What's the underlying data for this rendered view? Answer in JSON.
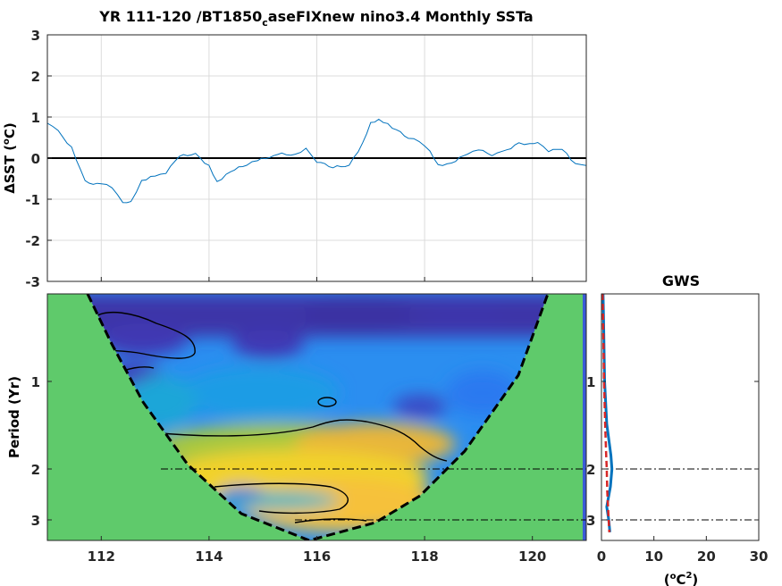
{
  "chart_data": [
    {
      "type": "line",
      "title_main": "YR 111-120 /BT1850",
      "title_sub": "c",
      "title_rest": "aseFIXnew nino3.4 Monthly SSTa",
      "ylabel_delta": "Δ",
      "ylabel_rest": "SST (",
      "ylabel_deg": "o",
      "ylabel_unit": "C)",
      "xlim": [
        111,
        121
      ],
      "ylim": [
        -3,
        3
      ],
      "xticks": [
        112,
        114,
        116,
        118,
        120
      ],
      "yticks": [
        3,
        2,
        1,
        0,
        -1,
        -2,
        -3
      ],
      "grid": true,
      "zero_line": true,
      "series_color": "#0072bd",
      "knots": [
        [
          111.0,
          0.85
        ],
        [
          111.2,
          0.65
        ],
        [
          111.45,
          0.25
        ],
        [
          111.7,
          -0.55
        ],
        [
          111.85,
          -0.62
        ],
        [
          112.0,
          -0.6
        ],
        [
          112.2,
          -0.72
        ],
        [
          112.4,
          -1.1
        ],
        [
          112.55,
          -1.08
        ],
        [
          112.75,
          -0.55
        ],
        [
          113.0,
          -0.42
        ],
        [
          113.2,
          -0.35
        ],
        [
          113.45,
          0.05
        ],
        [
          113.75,
          0.1
        ],
        [
          114.0,
          -0.2
        ],
        [
          114.15,
          -0.58
        ],
        [
          114.4,
          -0.32
        ],
        [
          114.7,
          -0.15
        ],
        [
          114.9,
          -0.05
        ],
        [
          115.2,
          0.05
        ],
        [
          115.35,
          0.1
        ],
        [
          115.6,
          0.08
        ],
        [
          115.8,
          0.25
        ],
        [
          116.0,
          -0.08
        ],
        [
          116.3,
          -0.22
        ],
        [
          116.6,
          -0.18
        ],
        [
          116.85,
          0.35
        ],
        [
          117.0,
          0.85
        ],
        [
          117.15,
          0.95
        ],
        [
          117.4,
          0.75
        ],
        [
          117.7,
          0.5
        ],
        [
          117.9,
          0.4
        ],
        [
          118.1,
          0.15
        ],
        [
          118.25,
          -0.18
        ],
        [
          118.5,
          -0.12
        ],
        [
          118.8,
          0.12
        ],
        [
          119.0,
          0.22
        ],
        [
          119.25,
          0.06
        ],
        [
          119.45,
          0.15
        ],
        [
          119.75,
          0.35
        ],
        [
          119.95,
          0.35
        ],
        [
          120.1,
          0.4
        ],
        [
          120.3,
          0.18
        ],
        [
          120.55,
          0.22
        ],
        [
          120.8,
          -0.15
        ],
        [
          121.0,
          -0.18
        ]
      ]
    },
    {
      "type": "heatmap",
      "xlim": [
        111,
        121
      ],
      "ylabel": "Period (Yr)",
      "xticks": [
        112,
        114,
        116,
        118,
        120
      ],
      "yticks": [
        1,
        2,
        3
      ],
      "y_scale": "log",
      "reference_periods": [
        2,
        3
      ],
      "cone_of_influence": true,
      "colormap": "parula"
    },
    {
      "type": "line",
      "title": "GWS",
      "xlabel_main": "(",
      "xlabel_deg": "o",
      "xlabel_mid": "C",
      "xlabel_sup": "2",
      "xlabel_end": ")",
      "xlim": [
        0,
        30
      ],
      "xticks": [
        0,
        10,
        20,
        30
      ],
      "yticks": [
        1,
        2,
        3
      ],
      "reference_periods": [
        2,
        3
      ],
      "series": [
        {
          "style": "solid",
          "color": "#0072bd",
          "values": [
            [
              0.3,
              0.2
            ],
            [
              0.4,
              0.6
            ],
            [
              0.6,
              1.0
            ],
            [
              1.0,
              1.4
            ],
            [
              1.8,
              1.8
            ],
            [
              2.0,
              2.0
            ],
            [
              1.7,
              2.3
            ],
            [
              1.0,
              2.7
            ],
            [
              1.4,
              3.0
            ],
            [
              1.6,
              3.3
            ]
          ]
        },
        {
          "style": "dashed",
          "color": "#d62728",
          "values": [
            [
              0.2,
              0.2
            ],
            [
              0.3,
              0.6
            ],
            [
              0.5,
              1.0
            ],
            [
              0.7,
              1.4
            ],
            [
              0.9,
              1.8
            ],
            [
              1.0,
              2.0
            ],
            [
              1.1,
              2.4
            ],
            [
              1.3,
              2.8
            ],
            [
              1.5,
              3.3
            ]
          ]
        }
      ]
    }
  ]
}
